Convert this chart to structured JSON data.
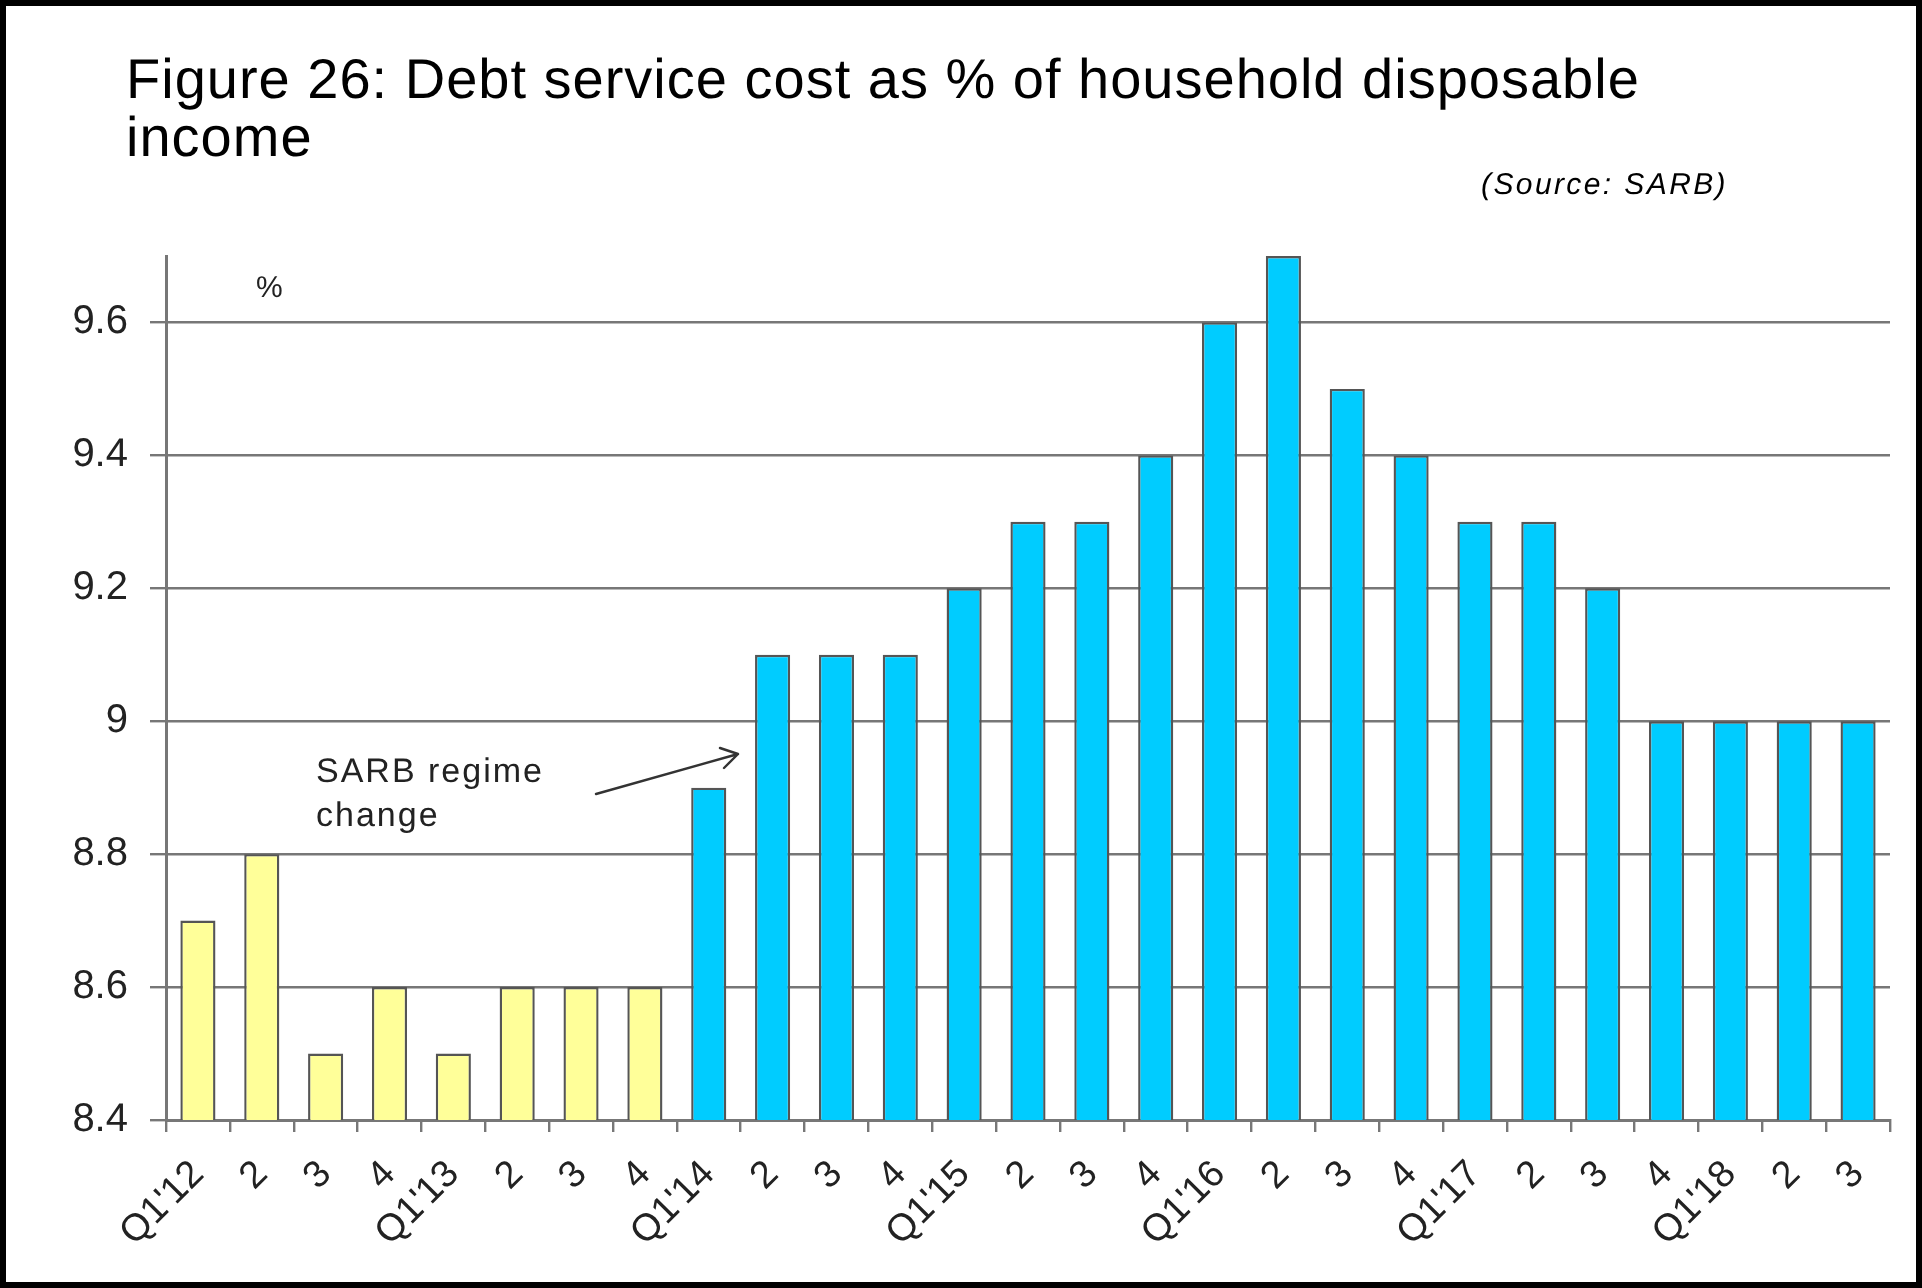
{
  "chart_data": {
    "type": "bar",
    "title": "Figure 26: Debt service cost as % of household disposable income",
    "ylabel": "%",
    "annotations": [
      "(Source: SARB)",
      "SARB regime change"
    ],
    "categories": [
      "Q1'12",
      "2",
      "3",
      "4",
      "Q1'13",
      "2",
      "3",
      "4",
      "Q1'14",
      "2",
      "3",
      "4",
      "Q1'15",
      "2",
      "3",
      "4",
      "Q1'16",
      "2",
      "3",
      "4",
      "Q1'17",
      "2",
      "3",
      "4",
      "Q1'18",
      "2",
      "3"
    ],
    "values": [
      8.7,
      8.8,
      8.5,
      8.6,
      8.5,
      8.6,
      8.6,
      8.6,
      8.9,
      9.1,
      9.1,
      9.1,
      9.2,
      9.3,
      9.3,
      9.4,
      9.6,
      9.7,
      9.5,
      9.4,
      9.3,
      9.3,
      9.2,
      9.0,
      9.0,
      9.0,
      9.0
    ],
    "colors": [
      "#ffff99",
      "#ffff99",
      "#ffff99",
      "#ffff99",
      "#ffff99",
      "#ffff99",
      "#ffff99",
      "#ffff99",
      "#00ccff",
      "#00ccff",
      "#00ccff",
      "#00ccff",
      "#00ccff",
      "#00ccff",
      "#00ccff",
      "#00ccff",
      "#00ccff",
      "#00ccff",
      "#00ccff",
      "#00ccff",
      "#00ccff",
      "#00ccff",
      "#00ccff",
      "#00ccff",
      "#00ccff",
      "#00ccff",
      "#00ccff"
    ],
    "ylim": [
      8.4,
      9.7
    ],
    "yticks": [
      8.4,
      8.6,
      8.8,
      9,
      9.2,
      9.4,
      9.6
    ],
    "grid": "y"
  }
}
